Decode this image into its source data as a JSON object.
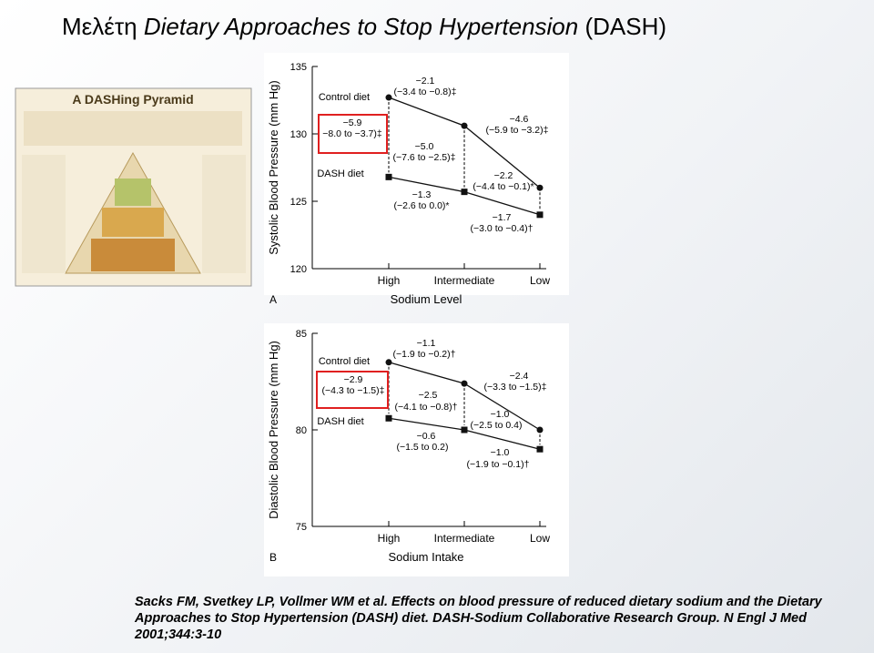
{
  "slide": {
    "title": [
      "Μελέτη",
      "Dietary Approaches to Stop Hypertension",
      "(DASH)"
    ],
    "citation": "Sacks FM, Svetkey LP, Vollmer WM et al. Effects on blood pressure of reduced dietary sodium and the Dietary Approaches to Stop Hypertension (DASH) diet. DASH-Sodium Collaborative Research Group. N Engl J Med 2001;344:3-10",
    "pyramid_title": "A DASHing Pyramid"
  },
  "chart_data": [
    {
      "type": "line",
      "panel": "A",
      "y_label": "Systolic Blood Pressure (mm Hg)",
      "x_label": "Sodium Level",
      "categories": [
        "High",
        "Intermediate",
        "Low"
      ],
      "ylim": [
        120,
        135
      ],
      "yticks": [
        120,
        125,
        130,
        135
      ],
      "series": [
        {
          "name": "Control diet",
          "color": "#111111",
          "values": [
            132.7,
            130.6,
            126.0
          ]
        },
        {
          "name": "DASH diet",
          "color": "#111111",
          "values": [
            126.8,
            125.7,
            124.0
          ]
        }
      ],
      "annotations": [
        "−2.1",
        "(−3.4 to −0.8)‡",
        "−5.9",
        "−8.0 to −3.7)‡",
        "−5.0",
        "(−7.6 to −2.5)‡",
        "−4.6",
        "(−5.9 to −3.2)‡",
        "−2.2",
        "(−4.4 to −0.1)*",
        "−1.3",
        "(−2.6 to 0.0)*",
        "−1.7",
        "(−3.0 to −0.4)†"
      ]
    },
    {
      "type": "line",
      "panel": "B",
      "y_label": "Diastolic Blood Pressure (mm Hg)",
      "x_label": "Sodium Intake",
      "categories": [
        "High",
        "Intermediate",
        "Low"
      ],
      "ylim": [
        75,
        85
      ],
      "yticks": [
        75,
        80,
        85
      ],
      "series": [
        {
          "name": "Control diet",
          "color": "#111111",
          "values": [
            83.5,
            82.4,
            80.0
          ]
        },
        {
          "name": "DASH diet",
          "color": "#111111",
          "values": [
            80.6,
            80.0,
            79.0
          ]
        }
      ],
      "annotations": [
        "−1.1",
        "(−1.9 to −0.2)†",
        "−2.9",
        "(−4.3 to −1.5)‡",
        "−2.4",
        "(−3.3 to −1.5)‡",
        "−2.5",
        "(−4.1 to −0.8)†",
        "−1.0",
        "(−2.5 to 0.4)",
        "−0.6",
        "(−1.5 to 0.2)",
        "−1.0",
        "(−1.9 to −0.1)†"
      ]
    }
  ]
}
